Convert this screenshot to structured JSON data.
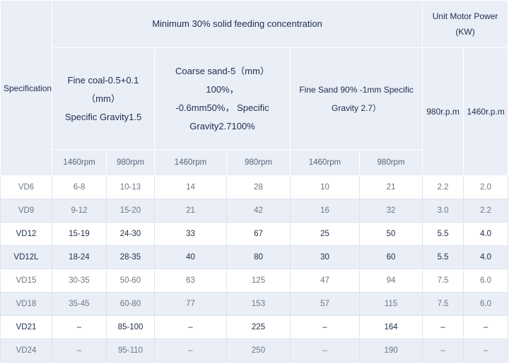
{
  "table": {
    "header": {
      "specification": "Specification",
      "concentration": "Minimum 30% solid feeding concentration",
      "motor_power": [
        "Unit Motor Power",
        "(KW)"
      ],
      "materials": [
        [
          "Fine coal-0.5+0.1",
          "（mm）",
          "Specific Gravity1.5"
        ],
        [
          "Coarse sand-5（mm）",
          "100%，",
          "-0.6mm50%， Specific",
          "Gravity2.7100%"
        ],
        [
          "Fine Sand 90% -1mm Specific",
          "Gravity 2.7）"
        ]
      ],
      "speeds": [
        "1460rpm",
        "980rpm",
        "1460rpm",
        "980rpm",
        "1460rpm",
        "980rpm"
      ],
      "motor_speeds": [
        "980r.p.m",
        "1460r.p.m"
      ]
    },
    "rows": [
      [
        "VD6",
        "6-8",
        "10-13",
        "14",
        "28",
        "10",
        "21",
        "2.2",
        "2.0"
      ],
      [
        "VD9",
        "9-12",
        "15-20",
        "21",
        "42",
        "16",
        "32",
        "3.0",
        "2.2"
      ],
      [
        "VD12",
        "15-19",
        "24-30",
        "33",
        "67",
        "25",
        "50",
        "5.5",
        "4.0"
      ],
      [
        "VD12L",
        "18-24",
        "28-35",
        "40",
        "80",
        "30",
        "60",
        "5.5",
        "4.0"
      ],
      [
        "VD15",
        "30-35",
        "50-60",
        "63",
        "125",
        "47",
        "94",
        "7.5",
        "6.0"
      ],
      [
        "VD18",
        "35-45",
        "60-80",
        "77",
        "153",
        "57",
        "115",
        "7.5",
        "6.0"
      ],
      [
        "VD21",
        "–",
        "85-100",
        "–",
        "225",
        "–",
        "164",
        "–",
        "–"
      ],
      [
        "VD24",
        "–",
        "95-110",
        "–",
        "250",
        "–",
        "190",
        "–",
        "–"
      ]
    ]
  }
}
